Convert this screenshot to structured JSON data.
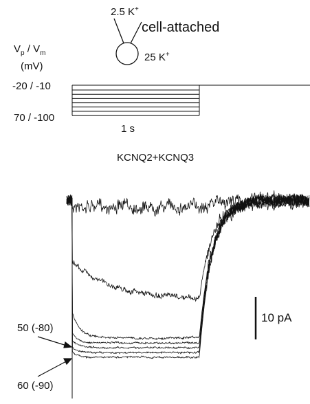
{
  "pipette": {
    "inside": {
      "text": "2.5 K",
      "sup": "+"
    },
    "config": "cell-attached",
    "bath": {
      "text": "25 K",
      "sup": "+"
    }
  },
  "protocol": {
    "axis_label": {
      "v": "V",
      "p": "p",
      "sep": " / V",
      "m": "m",
      "unit": "(mV)"
    },
    "top_level": "-20 / -10",
    "bottom_level": "70 / -100",
    "time_scale": "1 s"
  },
  "recording": {
    "title": "KCNQ2+KCNQ3",
    "current_scale": "10 pA",
    "upper_arrow_label": "50 (-80)",
    "lower_arrow_label": "60 (-90)"
  }
}
